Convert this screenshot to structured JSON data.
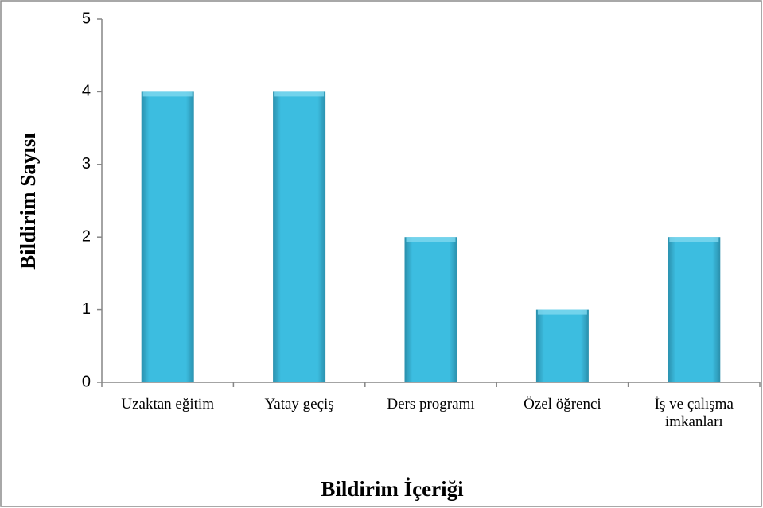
{
  "chart_data": {
    "type": "bar",
    "xlabel": "Bildirim İçeriği",
    "ylabel": "Bildirim Sayısı",
    "categories": [
      "Uzaktan eğitim",
      "Yatay geçiş",
      "Ders programı",
      "Özel öğrenci",
      "İş ve çalışma imkanları"
    ],
    "values": [
      4,
      4,
      2,
      1,
      2
    ],
    "color": "#3cbde0",
    "ylim": [
      0,
      5
    ],
    "yticks": [
      0,
      1,
      2,
      3,
      4,
      5
    ],
    "grid": false
  }
}
